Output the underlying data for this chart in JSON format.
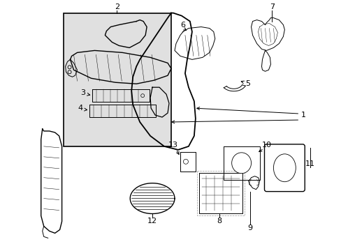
{
  "bg_color": "#ffffff",
  "line_color": "#000000",
  "inset_bg": "#e0e0e0",
  "figsize": [
    4.89,
    3.6
  ],
  "dpi": 100
}
